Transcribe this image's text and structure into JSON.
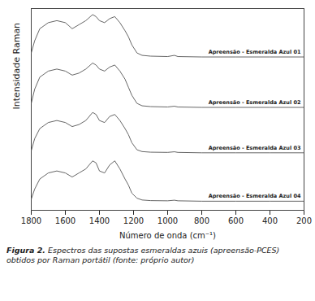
{
  "chart_data": {
    "type": "line",
    "x_label": "Número de onda (cm⁻¹)",
    "y_label": "Intensidade Raman",
    "caption_label": "Figura 2.",
    "caption": "Espectros das supostas esmeraldas azuis (apreensão-PCES) obtidos por Raman portátil (fonte: próprio autor)",
    "x": [
      1800,
      1780,
      1750,
      1700,
      1650,
      1600,
      1560,
      1520,
      1480,
      1440,
      1420,
      1400,
      1370,
      1340,
      1310,
      1280,
      1250,
      1230,
      1210,
      1180,
      1150,
      1100,
      1000,
      960,
      940,
      800,
      600,
      400,
      200
    ],
    "series": [
      {
        "name": "Apreensão - Esmeralda Azul 01",
        "color": "#555555",
        "values": [
          78,
          84,
          90,
          93,
          94,
          93,
          90,
          92,
          94,
          97,
          96,
          94,
          93,
          95,
          96,
          93,
          89,
          86,
          82,
          78,
          76.8,
          76.4,
          76.2,
          76.8,
          76.2,
          76,
          76,
          76,
          76
        ]
      },
      {
        "name": "Apreensão - Esmeralda Azul 02",
        "color": "#555555",
        "values": [
          53,
          60,
          66,
          69,
          70,
          69,
          67,
          68,
          70,
          73,
          72,
          70,
          69,
          71,
          72,
          69,
          65,
          61,
          57,
          53,
          51.8,
          51.4,
          51.2,
          51.6,
          51.2,
          51,
          51,
          51,
          51
        ]
      },
      {
        "name": "Apreensão - Esmeralda Azul 03",
        "color": "#555555",
        "values": [
          29.5,
          35.5,
          40.5,
          43.5,
          44.5,
          43.5,
          41.5,
          42.5,
          44.5,
          48.5,
          47.5,
          44.5,
          43.5,
          46.5,
          47.5,
          44.5,
          40.5,
          37.5,
          33.5,
          30,
          29.1,
          28.8,
          28.7,
          29,
          28.7,
          28.5,
          28.5,
          28.5,
          28.5
        ]
      },
      {
        "name": "Apreensão - Esmeralda Azul 04",
        "color": "#555555",
        "values": [
          5.5,
          10.5,
          15.5,
          18.5,
          19.5,
          18.5,
          16.5,
          18.5,
          20.5,
          24.5,
          23.5,
          19.5,
          18.5,
          22.5,
          24.5,
          20.5,
          15.5,
          12.5,
          8.5,
          6,
          5.1,
          4.8,
          4.7,
          5,
          4.7,
          4.5,
          4.5,
          4.5,
          4.5
        ]
      }
    ],
    "xlim": [
      1800,
      200
    ],
    "xticks": [
      1800,
      1600,
      1400,
      1200,
      1000,
      800,
      600,
      400,
      200
    ],
    "ylim": [
      0,
      100
    ],
    "yticks": [],
    "tick_labels": "x",
    "grid": false
  }
}
